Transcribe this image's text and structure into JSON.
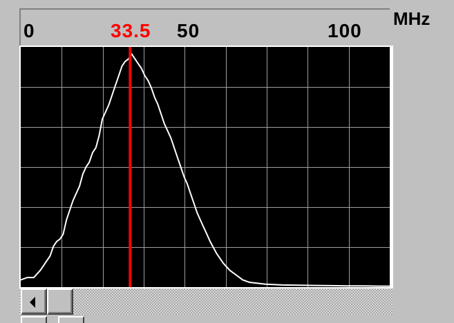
{
  "spectrum": {
    "unit": "MHz",
    "marker": {
      "freq": 33.5,
      "label": "33.5",
      "color": "#ff0000"
    },
    "ticks": [
      {
        "value": 0,
        "label": "0"
      },
      {
        "value": 50,
        "label": "50"
      },
      {
        "value": 100,
        "label": "100"
      }
    ]
  },
  "chart_data": {
    "type": "line",
    "title": "",
    "xlabel": "MHz",
    "ylabel": "",
    "xlim": [
      0,
      113
    ],
    "ylim": [
      0,
      100
    ],
    "grid": true,
    "grid_divisions": {
      "x": 9,
      "y": 6
    },
    "background": "#000000",
    "grid_color": "#a0a0a0",
    "trace_color": "#ffffff",
    "marker_x": 33.5,
    "series": [
      {
        "x": [
          0,
          2,
          4,
          6,
          7,
          8,
          9,
          10,
          11,
          12,
          13,
          14,
          15,
          16,
          17,
          18,
          19,
          20,
          21,
          22,
          23,
          24,
          25,
          26,
          27,
          28,
          29,
          30,
          31,
          32,
          33,
          33.5,
          34,
          35,
          36,
          37,
          38,
          39,
          40,
          41,
          42,
          43,
          44,
          45,
          46,
          47,
          48,
          49,
          50,
          51,
          52,
          53,
          54,
          55,
          56,
          57,
          58,
          60,
          62,
          64,
          66,
          68,
          70,
          75,
          80,
          85,
          90,
          95,
          100,
          105,
          110,
          113
        ],
        "y": [
          3,
          4,
          4,
          7,
          9,
          11,
          13,
          17,
          19,
          20,
          22,
          28,
          32,
          36,
          39,
          42,
          47,
          50,
          52,
          56,
          58,
          63,
          70,
          73,
          76,
          80,
          84,
          88,
          92,
          94,
          95,
          96,
          97,
          95,
          93,
          91,
          88,
          86,
          83,
          79,
          76,
          72,
          68,
          65,
          62,
          58,
          54,
          50,
          46,
          43,
          39,
          35,
          31,
          28,
          25,
          22,
          19,
          14,
          10,
          7,
          5,
          3,
          2,
          1.2,
          0.9,
          0.8,
          0.7,
          0.6,
          0.5,
          0.5,
          0.4,
          0.4
        ]
      }
    ]
  }
}
